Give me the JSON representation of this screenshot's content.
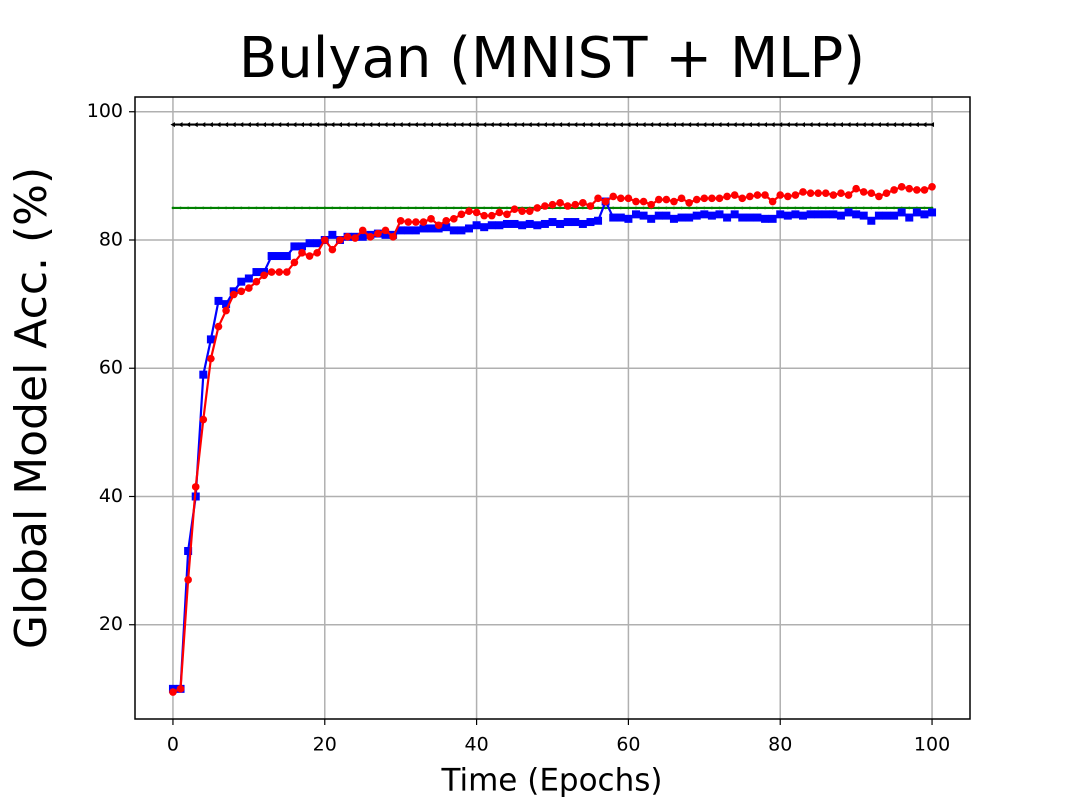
{
  "chart_data": {
    "type": "line",
    "title": "Bulyan (MNIST + MLP)",
    "x_label": "Time (Epochs)",
    "y_label": "Global Model Acc. (%)",
    "xlim": [
      -5,
      105
    ],
    "ylim": [
      5.3,
      102.3
    ],
    "xticks": [
      0,
      20,
      40,
      60,
      80,
      100
    ],
    "yticks": [
      20,
      40,
      60,
      80,
      100
    ],
    "grid": true,
    "x": [
      0,
      1,
      2,
      3,
      4,
      5,
      6,
      7,
      8,
      9,
      10,
      11,
      12,
      13,
      14,
      15,
      16,
      17,
      18,
      19,
      20,
      21,
      22,
      23,
      24,
      25,
      26,
      27,
      28,
      29,
      30,
      31,
      32,
      33,
      34,
      35,
      36,
      37,
      38,
      39,
      40,
      41,
      42,
      43,
      44,
      45,
      46,
      47,
      48,
      49,
      50,
      51,
      52,
      53,
      54,
      55,
      56,
      57,
      58,
      59,
      60,
      61,
      62,
      63,
      64,
      65,
      66,
      67,
      68,
      69,
      70,
      71,
      72,
      73,
      74,
      75,
      76,
      77,
      78,
      79,
      80,
      81,
      82,
      83,
      84,
      85,
      86,
      87,
      88,
      89,
      90,
      91,
      92,
      93,
      94,
      95,
      96,
      97,
      98,
      99,
      100
    ],
    "series": [
      {
        "color": "#000000",
        "marker": "triangle-left",
        "values": [
          98,
          98,
          98,
          98,
          98,
          98,
          98,
          98,
          98,
          98,
          98,
          98,
          98,
          98,
          98,
          98,
          98,
          98,
          98,
          98,
          98,
          98,
          98,
          98,
          98,
          98,
          98,
          98,
          98,
          98,
          98,
          98,
          98,
          98,
          98,
          98,
          98,
          98,
          98,
          98,
          98,
          98,
          98,
          98,
          98,
          98,
          98,
          98,
          98,
          98,
          98,
          98,
          98,
          98,
          98,
          98,
          98,
          98,
          98,
          98,
          98,
          98,
          98,
          98,
          98,
          98,
          98,
          98,
          98,
          98,
          98,
          98,
          98,
          98,
          98,
          98,
          98,
          98,
          98,
          98,
          98,
          98,
          98,
          98,
          98,
          98,
          98,
          98,
          98,
          98,
          98,
          98,
          98,
          98,
          98,
          98,
          98,
          98,
          98,
          98,
          98
        ]
      },
      {
        "color": "#008000",
        "marker": "point",
        "values": [
          85,
          85,
          85,
          85,
          85,
          85,
          85,
          85,
          85,
          85,
          85,
          85,
          85,
          85,
          85,
          85,
          85,
          85,
          85,
          85,
          85,
          85,
          85,
          85,
          85,
          85,
          85,
          85,
          85,
          85,
          85,
          85,
          85,
          85,
          85,
          85,
          85,
          85,
          85,
          85,
          85,
          85,
          85,
          85,
          85,
          85,
          85,
          85,
          85,
          85,
          85,
          85,
          85,
          85,
          85,
          85,
          85,
          85,
          85,
          85,
          85,
          85,
          85,
          85,
          85,
          85,
          85,
          85,
          85,
          85,
          85,
          85,
          85,
          85,
          85,
          85,
          85,
          85,
          85,
          85,
          85,
          85,
          85,
          85,
          85,
          85,
          85,
          85,
          85,
          85,
          85,
          85,
          85,
          85,
          85,
          85,
          85,
          85,
          85,
          85,
          85
        ]
      },
      {
        "color": "#0000ff",
        "marker": "square",
        "values": [
          10,
          10,
          31.5,
          40,
          59,
          64.5,
          70.5,
          70,
          72,
          73.5,
          74,
          75,
          75,
          77.5,
          77.5,
          77.5,
          79,
          79,
          79.5,
          79.5,
          80,
          80.8,
          80,
          80.5,
          80.5,
          80.5,
          80.8,
          81,
          80.8,
          80.8,
          81.5,
          81.5,
          81.5,
          81.8,
          81.8,
          81.8,
          82,
          81.5,
          81.5,
          81.8,
          82.3,
          82,
          82.3,
          82.3,
          82.5,
          82.5,
          82.3,
          82.5,
          82.3,
          82.5,
          82.8,
          82.5,
          82.8,
          82.8,
          82.5,
          82.8,
          83,
          86,
          83.5,
          83.5,
          83.3,
          84,
          83.8,
          83.3,
          83.8,
          83.8,
          83.3,
          83.5,
          83.5,
          83.8,
          84,
          83.8,
          84,
          83.5,
          84,
          83.5,
          83.5,
          83.5,
          83.3,
          83.3,
          84,
          83.8,
          84,
          83.8,
          84,
          84,
          84,
          84,
          83.8,
          84.3,
          84,
          83.8,
          83,
          83.8,
          83.8,
          83.8,
          84.3,
          83.5,
          84.3,
          84,
          84.3
        ]
      },
      {
        "color": "#ff0000",
        "marker": "circle",
        "values": [
          9.5,
          10,
          27,
          41.5,
          52,
          61.5,
          66.5,
          69,
          71.5,
          72,
          72.5,
          73.5,
          74.5,
          75,
          75,
          75,
          76.5,
          78,
          77.5,
          78,
          80,
          78.5,
          80,
          80.5,
          80.3,
          81.5,
          80.5,
          81,
          81.5,
          80.5,
          83,
          82.8,
          82.8,
          82.8,
          83.3,
          82.3,
          83,
          83.3,
          84,
          84.5,
          84.3,
          83.8,
          83.8,
          84.3,
          84,
          84.8,
          84.5,
          84.5,
          85,
          85.3,
          85.5,
          85.8,
          85.3,
          85.5,
          85.8,
          85.3,
          86.5,
          86,
          86.8,
          86.5,
          86.5,
          86,
          86,
          85.5,
          86.3,
          86.3,
          86,
          86.5,
          85.8,
          86.3,
          86.5,
          86.5,
          86.5,
          86.8,
          87,
          86.5,
          86.8,
          87,
          87,
          86,
          87,
          86.8,
          87,
          87.5,
          87.3,
          87.3,
          87.3,
          87,
          87.3,
          87,
          88,
          87.5,
          87.3,
          86.8,
          87.3,
          87.8,
          88.3,
          88,
          87.8,
          87.8,
          88.3
        ]
      }
    ]
  }
}
